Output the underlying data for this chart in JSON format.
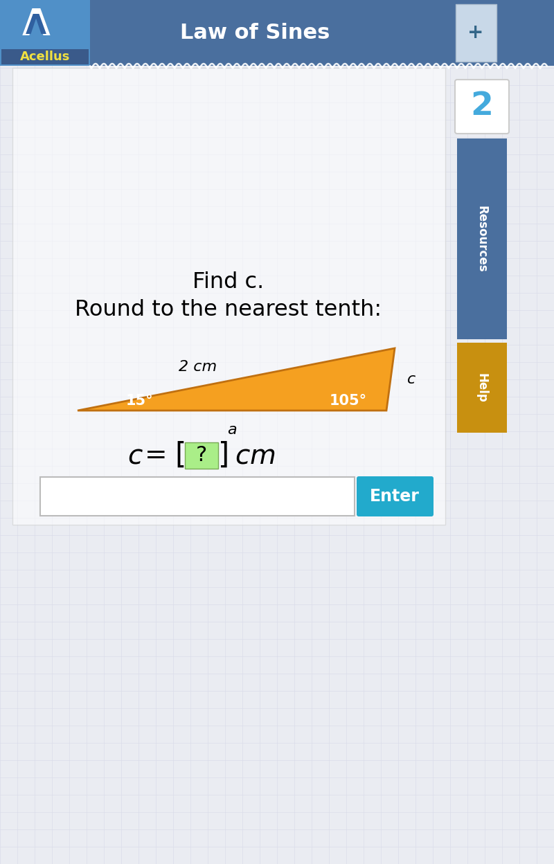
{
  "title": "Law of Sines",
  "bg_color": "#eaecf2",
  "header_color": "#4a6f9e",
  "header_text": "Law of Sines",
  "header_text_color": "#ffffff",
  "acellus_bg_top": "#5599cc",
  "acellus_bg_bot": "#3a5a8a",
  "acellus_text": "Acellus",
  "acellus_text_color": "#f0e040",
  "prompt_line1": "Find c.",
  "prompt_line2": "Round to the nearest tenth:",
  "triangle_color": "#f5a020",
  "triangle_edge_color": "#c07010",
  "side_label": "2 cm",
  "angle1_label": "15°",
  "angle2_label": "105°",
  "vertex_c_label": "c",
  "base_label": "a",
  "bracket_bg": "#aaee88",
  "enter_button_color": "#22aacc",
  "enter_button_text": "Enter",
  "sidebar_resources_color": "#4a6f9e",
  "sidebar_help_color": "#c89010",
  "sidebar_number": "2",
  "grid_color": "#d8dae8",
  "white_box_color": "#f0f0f0"
}
